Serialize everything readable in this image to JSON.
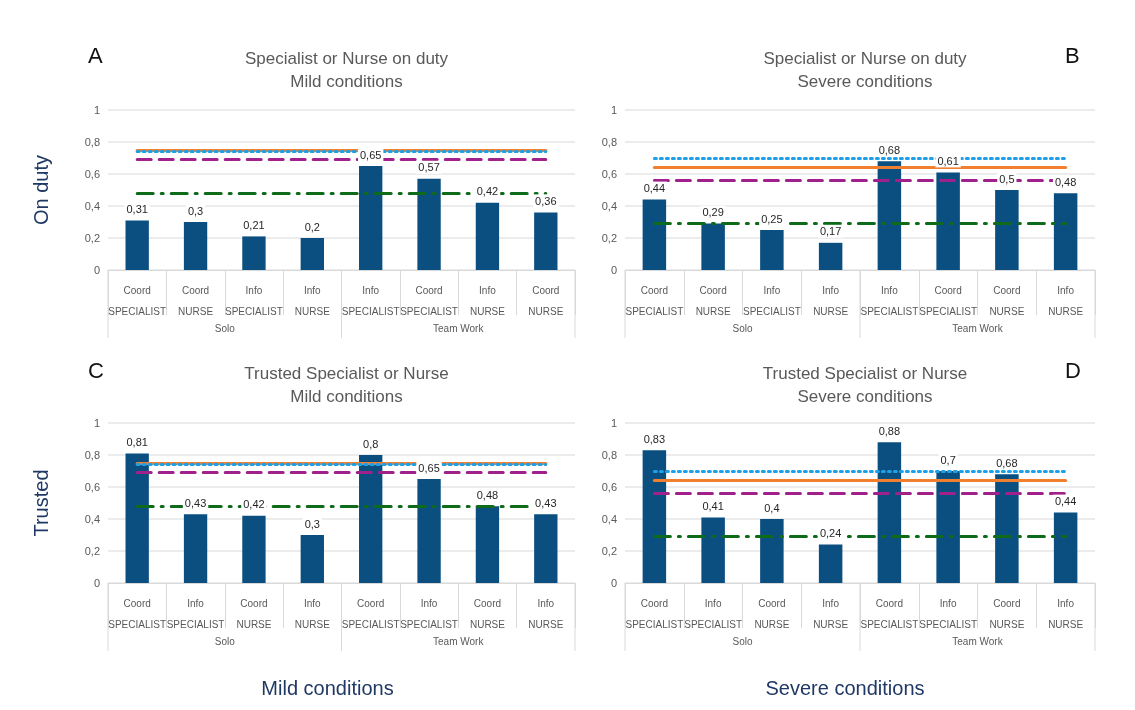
{
  "chart_data": [
    {
      "type": "bar",
      "title": "Specialist or Nurse on duty\nMild conditions",
      "categories": [
        "Coord\nSPECIALIST",
        "Coord\nNURSE",
        "Info\nSPECIALIST",
        "Info\nNURSE",
        "Info\nSPECIALIST",
        "Coord\nSPECIALIST",
        "Info\nNURSE",
        "Coord\nNURSE"
      ],
      "values": [
        0.31,
        0.3,
        0.21,
        0.2,
        0.65,
        0.57,
        0.42,
        0.36
      ],
      "value_labels": [
        "0,31",
        "0,3",
        "0,21",
        "0,2",
        "0,65",
        "0,57",
        "0,42",
        "0,36"
      ],
      "color": "#0b4f80",
      "ylim": [
        0,
        1
      ],
      "yticks": [
        {
          "value": 0,
          "label": "0"
        },
        {
          "value": 0.2,
          "label": "0,2"
        },
        {
          "value": 0.4,
          "label": "0,4"
        },
        {
          "value": 0.6,
          "label": "0,6"
        },
        {
          "value": 0.8,
          "label": "0,8"
        },
        {
          "value": 1,
          "label": "1"
        }
      ],
      "grid": "y",
      "ref_lines": [
        {
          "axis": "y",
          "value": 0.75,
          "color": "#f07f30",
          "line_style": "solid"
        },
        {
          "axis": "y",
          "value": 0.74,
          "color": "#1ea0e6",
          "line_style": "dotted"
        },
        {
          "axis": "y",
          "value": 0.69,
          "color": "#a0208c",
          "line_style": "dashed"
        },
        {
          "axis": "y",
          "value": 0.48,
          "color": "#0e6b1a",
          "line_style": "dashdot"
        }
      ],
      "annotations": [
        "A",
        "Solo",
        "Team Work",
        "On duty"
      ]
    },
    {
      "type": "bar",
      "title": "Specialist or Nurse on duty\nSevere conditions",
      "categories": [
        "Coord\nSPECIALIST",
        "Coord\nNURSE",
        "Info\nSPECIALIST",
        "Info\nNURSE",
        "Info\nSPECIALIST",
        "Coord\nSPECIALIST",
        "Coord\nNURSE",
        "Info\nNURSE"
      ],
      "values": [
        0.44,
        0.29,
        0.25,
        0.17,
        0.68,
        0.61,
        0.5,
        0.48
      ],
      "value_labels": [
        "0,44",
        "0,29",
        "0,25",
        "0,17",
        "0,68",
        "0,61",
        "0,5",
        "0,48"
      ],
      "color": "#0b4f80",
      "ylim": [
        0,
        1
      ],
      "yticks": [
        {
          "value": 0,
          "label": "0"
        },
        {
          "value": 0.2,
          "label": "0,2"
        },
        {
          "value": 0.4,
          "label": "0,4"
        },
        {
          "value": 0.6,
          "label": "0,6"
        },
        {
          "value": 0.8,
          "label": "0,8"
        },
        {
          "value": 1,
          "label": "1"
        }
      ],
      "grid": "y",
      "ref_lines": [
        {
          "axis": "y",
          "value": 0.7,
          "color": "#1ea0e6",
          "line_style": "dotted"
        },
        {
          "axis": "y",
          "value": 0.64,
          "color": "#f07f30",
          "line_style": "solid"
        },
        {
          "axis": "y",
          "value": 0.56,
          "color": "#a0208c",
          "line_style": "dashed"
        },
        {
          "axis": "y",
          "value": 0.29,
          "color": "#0e6b1a",
          "line_style": "dashdot"
        }
      ],
      "annotations": [
        "B",
        "Solo",
        "Team Work"
      ]
    },
    {
      "type": "bar",
      "title": "Trusted Specialist or Nurse\nMild conditions",
      "categories": [
        "Coord\nSPECIALIST",
        "Info\nSPECIALIST",
        "Coord\nNURSE",
        "Info\nNURSE",
        "Coord\nSPECIALIST",
        "Info\nSPECIALIST",
        "Coord\nNURSE",
        "Info\nNURSE"
      ],
      "values": [
        0.81,
        0.43,
        0.42,
        0.3,
        0.8,
        0.65,
        0.48,
        0.43
      ],
      "value_labels": [
        "0,81",
        "0,43",
        "0,42",
        "0,3",
        "0,8",
        "0,65",
        "0,48",
        "0,43"
      ],
      "color": "#0b4f80",
      "ylim": [
        0,
        1
      ],
      "yticks": [
        {
          "value": 0,
          "label": "0"
        },
        {
          "value": 0.2,
          "label": "0,2"
        },
        {
          "value": 0.4,
          "label": "0,4"
        },
        {
          "value": 0.6,
          "label": "0,6"
        },
        {
          "value": 0.8,
          "label": "0,8"
        },
        {
          "value": 1,
          "label": "1"
        }
      ],
      "grid": "y",
      "ref_lines": [
        {
          "axis": "y",
          "value": 0.75,
          "color": "#f07f30",
          "line_style": "solid"
        },
        {
          "axis": "y",
          "value": 0.74,
          "color": "#1ea0e6",
          "line_style": "dotted"
        },
        {
          "axis": "y",
          "value": 0.69,
          "color": "#a0208c",
          "line_style": "dashed"
        },
        {
          "axis": "y",
          "value": 0.48,
          "color": "#0e6b1a",
          "line_style": "dashdot"
        }
      ],
      "annotations": [
        "C",
        "Solo",
        "Team Work",
        "Trusted",
        "Mild conditions"
      ]
    },
    {
      "type": "bar",
      "title": "Trusted Specialist or Nurse\nSevere conditions",
      "categories": [
        "Coord\nSPECIALIST",
        "Info\nSPECIALIST",
        "Coord\nNURSE",
        "Info\nNURSE",
        "Coord\nSPECIALIST",
        "Info\nSPECIALIST",
        "Coord\nNURSE",
        "Info\nNURSE"
      ],
      "values": [
        0.83,
        0.41,
        0.4,
        0.24,
        0.88,
        0.7,
        0.68,
        0.44
      ],
      "value_labels": [
        "0,83",
        "0,41",
        "0,4",
        "0,24",
        "0,88",
        "0,7",
        "0,68",
        "0,44"
      ],
      "color": "#0b4f80",
      "ylim": [
        0,
        1
      ],
      "yticks": [
        {
          "value": 0,
          "label": "0"
        },
        {
          "value": 0.2,
          "label": "0,2"
        },
        {
          "value": 0.4,
          "label": "0,4"
        },
        {
          "value": 0.6,
          "label": "0,6"
        },
        {
          "value": 0.8,
          "label": "0,8"
        },
        {
          "value": 1,
          "label": "1"
        }
      ],
      "grid": "y",
      "ref_lines": [
        {
          "axis": "y",
          "value": 0.7,
          "color": "#1ea0e6",
          "line_style": "dotted"
        },
        {
          "axis": "y",
          "value": 0.64,
          "color": "#f07f30",
          "line_style": "solid"
        },
        {
          "axis": "y",
          "value": 0.56,
          "color": "#a0208c",
          "line_style": "dashed"
        },
        {
          "axis": "y",
          "value": 0.29,
          "color": "#0e6b1a",
          "line_style": "dashdot"
        }
      ],
      "annotations": [
        "D",
        "Solo",
        "Team Work",
        "Severe conditions"
      ]
    }
  ]
}
